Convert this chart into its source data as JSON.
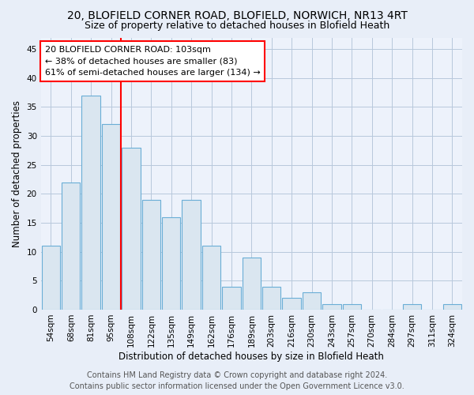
{
  "title": "20, BLOFIELD CORNER ROAD, BLOFIELD, NORWICH, NR13 4RT",
  "subtitle": "Size of property relative to detached houses in Blofield Heath",
  "xlabel": "Distribution of detached houses by size in Blofield Heath",
  "ylabel": "Number of detached properties",
  "bar_labels": [
    "54sqm",
    "68sqm",
    "81sqm",
    "95sqm",
    "108sqm",
    "122sqm",
    "135sqm",
    "149sqm",
    "162sqm",
    "176sqm",
    "189sqm",
    "203sqm",
    "216sqm",
    "230sqm",
    "243sqm",
    "257sqm",
    "270sqm",
    "284sqm",
    "297sqm",
    "311sqm",
    "324sqm"
  ],
  "bar_values": [
    11,
    22,
    37,
    32,
    28,
    19,
    16,
    19,
    11,
    4,
    9,
    4,
    2,
    3,
    1,
    1,
    0,
    0,
    1,
    0,
    1
  ],
  "bar_color": "#dae6f0",
  "bar_edge_color": "#6aaed6",
  "red_line_index": 4,
  "annotation_line1": "20 BLOFIELD CORNER ROAD: 103sqm",
  "annotation_line2": "← 38% of detached houses are smaller (83)",
  "annotation_line3": "61% of semi-detached houses are larger (134) →",
  "ylim": [
    0,
    47
  ],
  "yticks": [
    0,
    5,
    10,
    15,
    20,
    25,
    30,
    35,
    40,
    45
  ],
  "footer_line1": "Contains HM Land Registry data © Crown copyright and database right 2024.",
  "footer_line2": "Contains public sector information licensed under the Open Government Licence v3.0.",
  "title_fontsize": 10,
  "subtitle_fontsize": 9,
  "axis_label_fontsize": 8.5,
  "tick_fontsize": 7.5,
  "annotation_fontsize": 8,
  "footer_fontsize": 7,
  "background_color": "#e8eef8",
  "plot_background_color": "#edf2fb",
  "grid_color": "#b8c8dc"
}
